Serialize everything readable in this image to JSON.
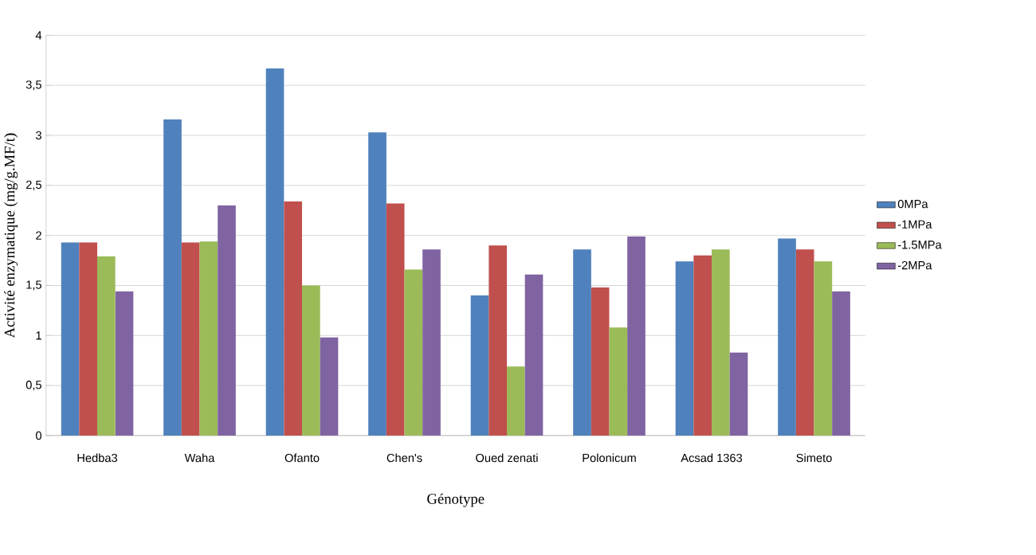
{
  "chart_data": {
    "type": "bar",
    "xlabel": "Génotype",
    "ylabel": "Activité enzymatique (mg/g.MF/t)",
    "categories": [
      "Hedba3",
      "Waha",
      "Ofanto",
      "Chen's",
      "Oued zenati",
      "Polonicum",
      "Acsad 1363",
      "Simeto"
    ],
    "series": [
      {
        "name": "0MPa",
        "color": "#4f81bd",
        "values": [
          1.93,
          3.16,
          3.67,
          3.03,
          1.4,
          1.86,
          1.74,
          1.97
        ]
      },
      {
        "name": "-1MPa",
        "color": "#c0504d",
        "values": [
          1.93,
          1.93,
          2.34,
          2.32,
          1.9,
          1.48,
          1.8,
          1.86
        ]
      },
      {
        "name": "-1.5MPa",
        "color": "#9bbb59",
        "values": [
          1.79,
          1.94,
          1.5,
          1.66,
          0.69,
          1.08,
          1.86,
          1.74
        ]
      },
      {
        "name": "-2MPa",
        "color": "#8064a2",
        "values": [
          1.44,
          2.3,
          0.98,
          1.86,
          1.61,
          1.99,
          0.83,
          1.44
        ]
      }
    ],
    "ylim": [
      0,
      4
    ],
    "yticks": [
      0,
      {
        "value": 0.5,
        "label": "0,5"
      },
      1,
      {
        "value": 1.5,
        "label": "1,5"
      },
      2,
      {
        "value": 2.5,
        "label": "2,5"
      },
      3,
      {
        "value": 3.5,
        "label": "3,5"
      },
      4
    ],
    "grid": "y",
    "legend": "right"
  }
}
